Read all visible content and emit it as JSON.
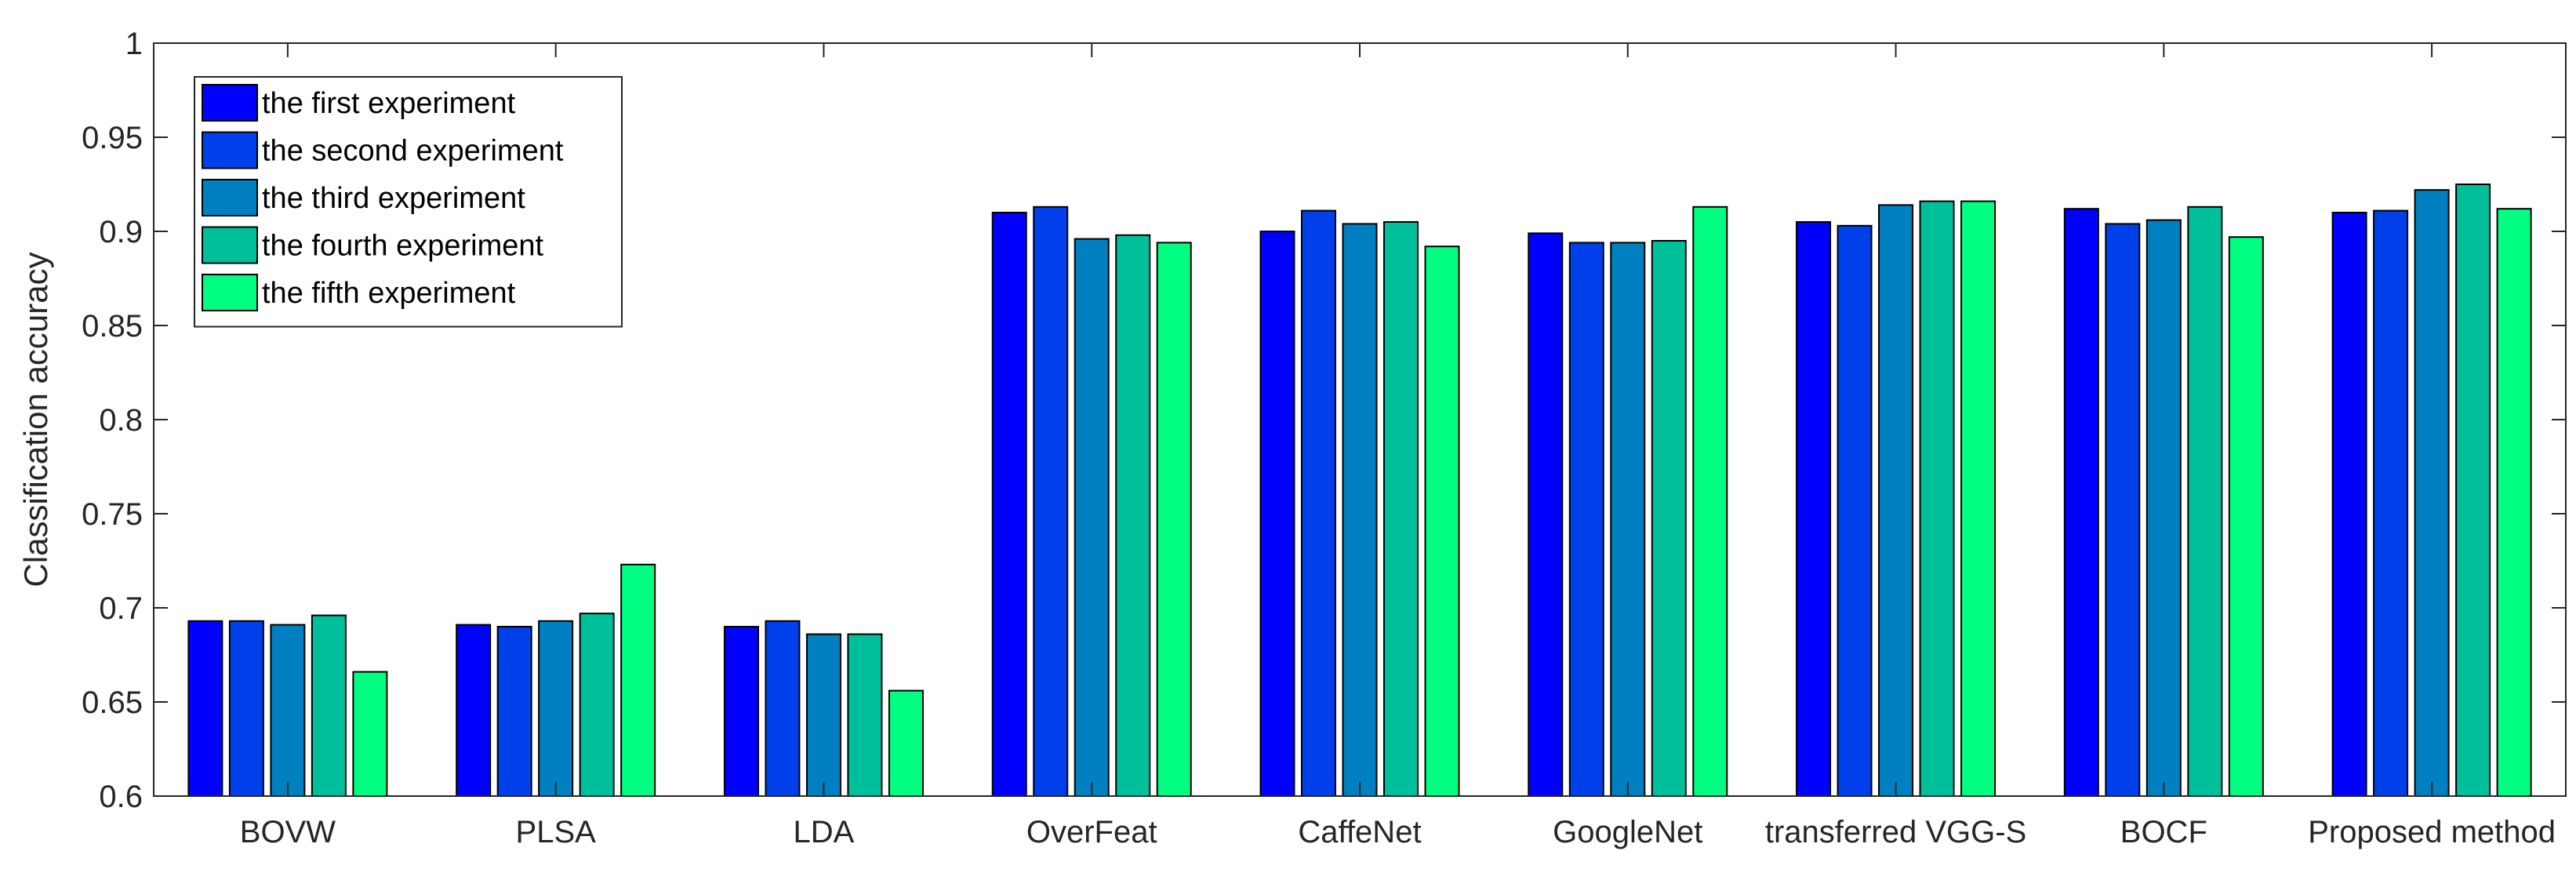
{
  "chart_data": {
    "type": "bar",
    "title": "",
    "xlabel": "",
    "ylabel": "Classification accuracy",
    "ylim": [
      0.6,
      1.0
    ],
    "yticks": [
      0.6,
      0.65,
      0.7,
      0.75,
      0.8,
      0.85,
      0.9,
      0.95,
      1.0
    ],
    "ytick_labels": [
      "0.6",
      "0.65",
      "0.7",
      "0.75",
      "0.8",
      "0.85",
      "0.9",
      "0.95",
      "1"
    ],
    "grid": false,
    "legend_position": "top-left",
    "categories": [
      "BOVW",
      "PLSA",
      "LDA",
      "OverFeat",
      "CaffeNet",
      "GoogleNet",
      "transferred VGG-S",
      "BOCF",
      "Proposed method"
    ],
    "series": [
      {
        "name": "the first experiment",
        "color": "#0000ff",
        "values": [
          0.693,
          0.691,
          0.69,
          0.91,
          0.9,
          0.899,
          0.905,
          0.912,
          0.91
        ]
      },
      {
        "name": "the second experiment",
        "color": "#0040ea",
        "values": [
          0.693,
          0.69,
          0.693,
          0.913,
          0.911,
          0.894,
          0.903,
          0.904,
          0.911
        ]
      },
      {
        "name": "the third experiment",
        "color": "#0080c0",
        "values": [
          0.691,
          0.693,
          0.686,
          0.896,
          0.904,
          0.894,
          0.914,
          0.906,
          0.922
        ]
      },
      {
        "name": "the fourth experiment",
        "color": "#00bf9b",
        "values": [
          0.696,
          0.697,
          0.686,
          0.898,
          0.905,
          0.895,
          0.916,
          0.913,
          0.925
        ]
      },
      {
        "name": "the fifth experiment",
        "color": "#00ff80",
        "values": [
          0.666,
          0.723,
          0.656,
          0.894,
          0.892,
          0.913,
          0.916,
          0.897,
          0.912
        ]
      }
    ]
  }
}
